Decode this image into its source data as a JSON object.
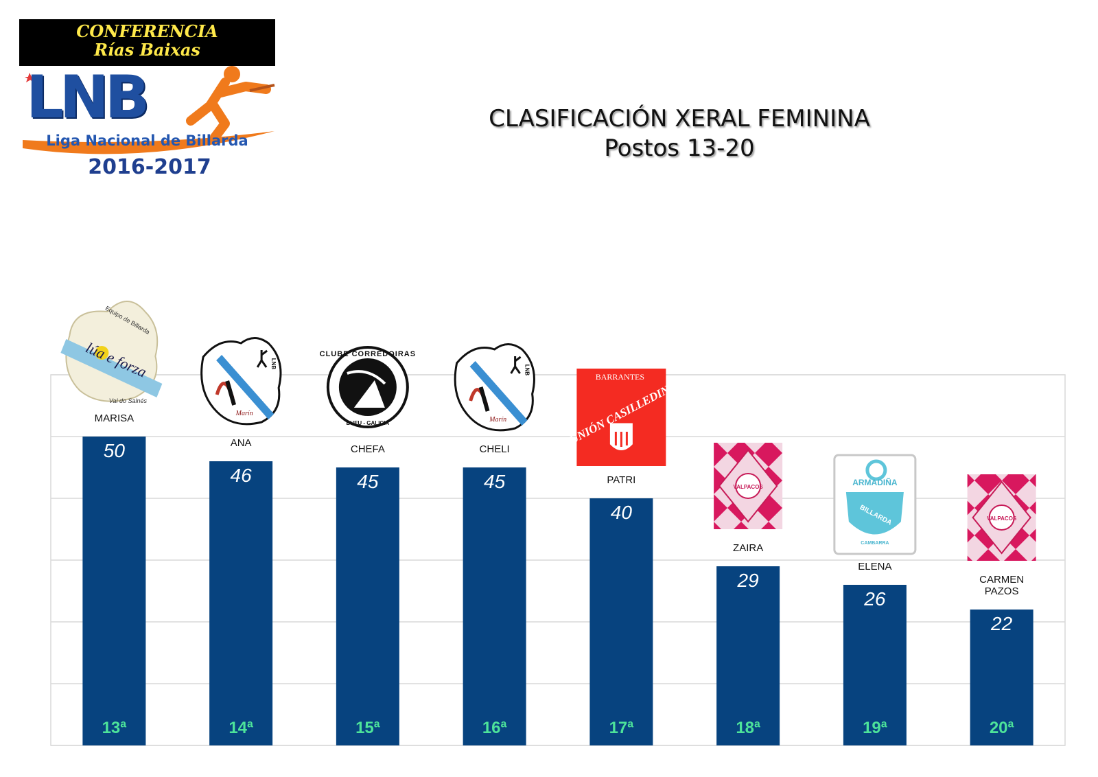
{
  "logo": {
    "conference_line1": "CONFERENCIA",
    "conference_line2": "Rías Baixas",
    "acronym": "LNB",
    "league_name": "Liga Nacional de Billarda",
    "season": "2016-2017"
  },
  "header": {
    "title": "CLASIFICACIÓN XERAL FEMININA",
    "subtitle": "Postos 13-20"
  },
  "colors": {
    "bar": "#07437f",
    "value_label": "#ffffff",
    "rank_label": "#4de39a",
    "gridline": "#d9d9d9",
    "accent_orange": "#f07a1c"
  },
  "chart_data": {
    "type": "bar",
    "categories": [
      "MARISA",
      "ANA",
      "CHEFA",
      "CHELI",
      "PATRI",
      "ZAIRA",
      "ELENA",
      "CARMEN PAZOS"
    ],
    "values": [
      50,
      46,
      45,
      45,
      40,
      29,
      26,
      22
    ],
    "ranks": [
      "13ª",
      "14ª",
      "15ª",
      "16ª",
      "17ª",
      "18ª",
      "19ª",
      "20ª"
    ],
    "club_logos": [
      "lua-e-forza",
      "lnb-marin",
      "clube-corredoiras",
      "lnb-marin",
      "barrantes",
      "valpacos",
      "armadina",
      "valpacos"
    ],
    "logo_texts": {
      "lua-e-forza": [
        "lúa e forza",
        "Equipo de Billarda",
        "Val do Salnés"
      ],
      "barrantes": [
        "BARRANTES",
        "UNIÓN CASILLEDIN"
      ],
      "clube-corredoiras": [
        "CLUBE CORREDOIRAS",
        "BUEU - GALICIA"
      ],
      "armadina": [
        "ARMADIÑA",
        "BILLARDA",
        "CAMBARRA"
      ],
      "valpacos": [
        "VALPACOS"
      ],
      "lnb-marin": [
        "Marín",
        "LNB"
      ]
    },
    "ylim": [
      0,
      60
    ],
    "grid": true,
    "title": "",
    "xlabel": "",
    "ylabel": ""
  }
}
